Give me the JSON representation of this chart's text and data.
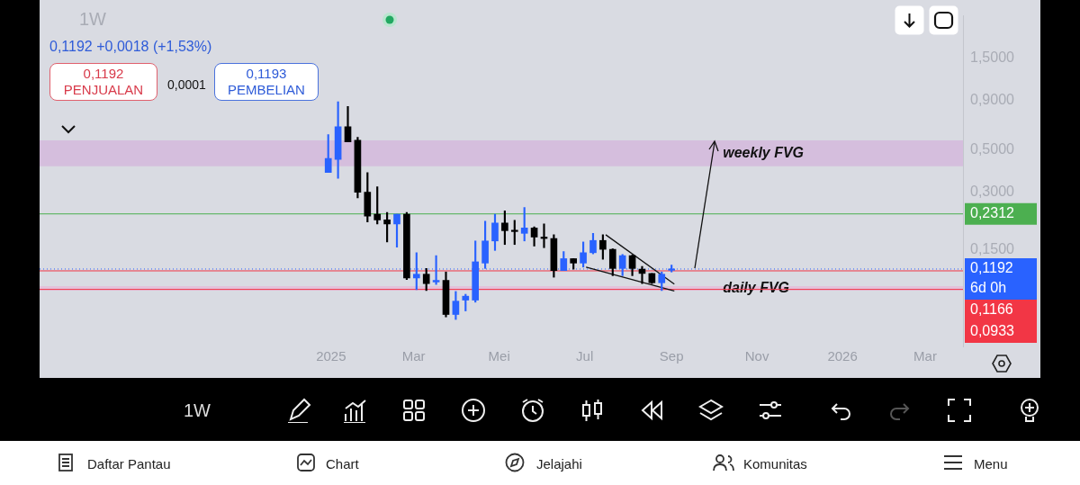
{
  "chart_data": {
    "type": "candlestick",
    "title": "1W",
    "subtitle": "0,1192 +0,0018 (+1,53%)",
    "x": [
      "2024-12-30",
      "2025-01-06",
      "2025-01-13",
      "2025-01-20",
      "2025-01-27",
      "2025-02-03",
      "2025-02-10",
      "2025-02-17",
      "2025-02-24",
      "2025-03-03",
      "2025-03-10",
      "2025-03-17",
      "2025-03-24",
      "2025-03-31",
      "2025-04-07",
      "2025-04-14",
      "2025-04-21",
      "2025-04-28",
      "2025-05-05",
      "2025-05-12",
      "2025-05-19",
      "2025-05-26",
      "2025-06-02",
      "2025-06-09",
      "2025-06-16",
      "2025-06-23",
      "2025-06-30",
      "2025-07-07",
      "2025-07-14",
      "2025-07-21",
      "2025-07-28",
      "2025-08-04",
      "2025-08-11",
      "2025-08-18",
      "2025-08-25",
      "2025-09-01"
    ],
    "ohlc": [
      [
        0.38,
        0.6,
        0.38,
        0.45
      ],
      [
        0.445,
        0.89,
        0.355,
        0.66
      ],
      [
        0.66,
        0.84,
        0.55,
        0.55
      ],
      [
        0.56,
        0.58,
        0.28,
        0.3
      ],
      [
        0.3,
        0.38,
        0.21,
        0.225
      ],
      [
        0.23,
        0.32,
        0.205,
        0.215
      ],
      [
        0.215,
        0.235,
        0.165,
        0.205
      ],
      [
        0.205,
        0.23,
        0.155,
        0.23
      ],
      [
        0.23,
        0.235,
        0.105,
        0.107
      ],
      [
        0.107,
        0.145,
        0.093,
        0.112
      ],
      [
        0.112,
        0.12,
        0.092,
        0.1
      ],
      [
        0.102,
        0.14,
        0.099,
        0.104
      ],
      [
        0.104,
        0.115,
        0.067,
        0.069
      ],
      [
        0.069,
        0.091,
        0.065,
        0.081
      ],
      [
        0.082,
        0.088,
        0.072,
        0.086
      ],
      [
        0.082,
        0.167,
        0.08,
        0.13
      ],
      [
        0.128,
        0.212,
        0.12,
        0.167
      ],
      [
        0.167,
        0.23,
        0.149,
        0.207
      ],
      [
        0.207,
        0.24,
        0.16,
        0.189
      ],
      [
        0.19,
        0.214,
        0.16,
        0.187
      ],
      [
        0.183,
        0.25,
        0.167,
        0.195
      ],
      [
        0.195,
        0.198,
        0.157,
        0.175
      ],
      [
        0.175,
        0.205,
        0.154,
        0.172
      ],
      [
        0.172,
        0.18,
        0.108,
        0.117
      ],
      [
        0.117,
        0.147,
        0.117,
        0.135
      ],
      [
        0.135,
        0.135,
        0.119,
        0.128
      ],
      [
        0.128,
        0.165,
        0.122,
        0.145
      ],
      [
        0.145,
        0.183,
        0.143,
        0.168
      ],
      [
        0.168,
        0.18,
        0.134,
        0.151
      ],
      [
        0.151,
        0.152,
        0.11,
        0.12
      ],
      [
        0.12,
        0.142,
        0.11,
        0.14
      ],
      [
        0.14,
        0.141,
        0.11,
        0.12
      ],
      [
        0.119,
        0.123,
        0.1,
        0.113
      ],
      [
        0.113,
        0.113,
        0.1,
        0.101
      ],
      [
        0.101,
        0.115,
        0.092,
        0.112
      ],
      [
        0.1174,
        0.125,
        0.115,
        0.1192
      ]
    ],
    "colors": [
      "#2962ff",
      "#2962ff",
      "#000000",
      "#000000",
      "#000000",
      "#000000",
      "#000000",
      "#2962ff",
      "#000000",
      "#2962ff",
      "#000000",
      "#2962ff",
      "#000000",
      "#2962ff",
      "#2962ff",
      "#2962ff",
      "#2962ff",
      "#2962ff",
      "#000000",
      "#000000",
      "#2962ff",
      "#000000",
      "#000000",
      "#000000",
      "#2962ff",
      "#000000",
      "#2962ff",
      "#2962ff",
      "#000000",
      "#000000",
      "#2962ff",
      "#000000",
      "#000000",
      "#000000",
      "#2962ff",
      "#2962ff"
    ],
    "series": [
      {
        "type": "line",
        "color": "#111111",
        "x": [
          "2025-07-16",
          "2025-09-03"
        ],
        "values": [
          0.18,
          0.0995
        ]
      },
      {
        "type": "line",
        "color": "#111111",
        "x": [
          "2025-07-02",
          "2025-09-03"
        ],
        "values": [
          0.122,
          0.0915
        ]
      }
    ],
    "log": "y",
    "xlim": [
      "2024-06-07",
      "2026-03-28"
    ],
    "xticks": [
      {
        "value": "2025-01-01",
        "label": "2025"
      },
      {
        "value": "2025-03-01",
        "label": "Mar"
      },
      {
        "value": "2025-05-01",
        "label": "Mei"
      },
      {
        "value": "2025-07-01",
        "label": "Jul"
      },
      {
        "value": "2025-09-01",
        "label": "Sep"
      },
      {
        "value": "2025-11-01",
        "label": "Nov"
      },
      {
        "value": "2026-01-01",
        "label": "2026"
      },
      {
        "value": "2026-03-01",
        "label": "Mar"
      }
    ],
    "ylim": [
      0.047,
      2.5
    ],
    "yticks": [
      {
        "value": 1.5,
        "label": "1,5000"
      },
      {
        "value": 0.9,
        "label": "0,9000"
      },
      {
        "value": 0.5,
        "label": "0,5000"
      },
      {
        "value": 0.3,
        "label": "0,3000"
      },
      {
        "value": 0.15,
        "label": "0,1500"
      }
    ],
    "grid": false,
    "legend": false,
    "ref_lines": [
      {
        "axis": "y",
        "value": 0.2312,
        "label": "0,2312",
        "color": "#4caf50"
      },
      {
        "axis": "y",
        "value": 0.1192,
        "label": "0,1192\n6d 0h",
        "color": "#2962ff",
        "line_style": "dotted"
      },
      {
        "axis": "y",
        "value": 0.1166,
        "label": "0,1166",
        "color": "#f23645"
      },
      {
        "axis": "y",
        "value": 0.0933,
        "label": "0,0933",
        "color": "#f23645"
      }
    ],
    "bands": [
      {
        "axis": "y",
        "from": 0.41,
        "to": 0.56,
        "label": "weekly FVG",
        "color": "#d3b8dc"
      },
      {
        "axis": "y",
        "from": 0.092,
        "to": 0.097,
        "label": "daily FVG",
        "color": "#e4bcd8"
      }
    ],
    "annotations": [
      "0,1192\nPENJUALAN",
      "0,0001",
      "0,1193\nPEMBELIAN",
      "1W",
      "Daftar Pantau",
      "Chart",
      "Jelajahi",
      "Komunitas",
      "Menu"
    ]
  }
}
